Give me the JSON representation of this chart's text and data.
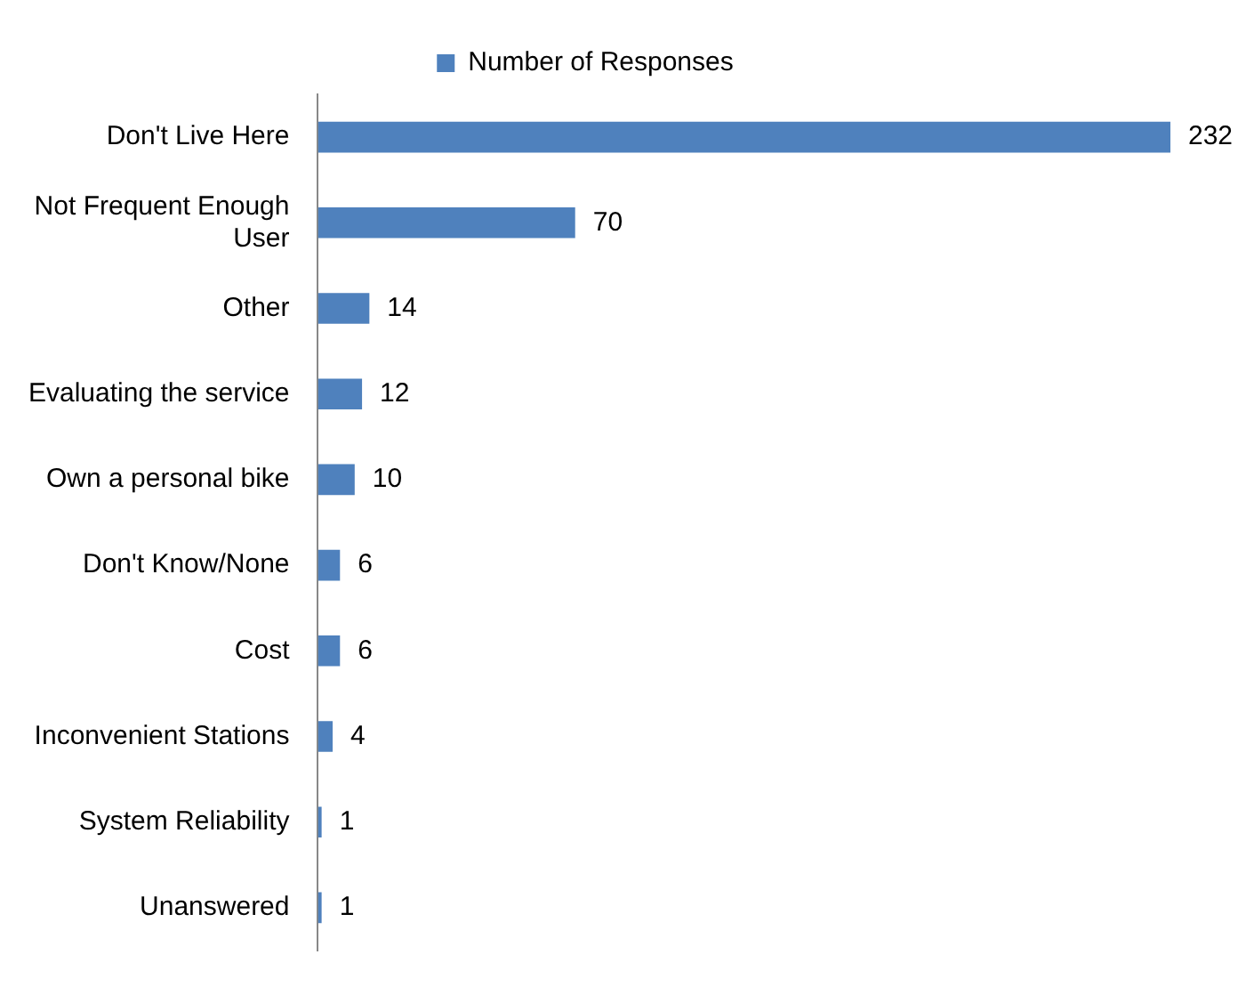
{
  "chart_data": {
    "type": "bar",
    "orientation": "horizontal",
    "categories": [
      "Don't Live Here",
      "Not Frequent Enough User",
      "Other",
      "Evaluating the service",
      "Own a personal bike",
      "Don't Know/None",
      "Cost",
      "Inconvenient Stations",
      "System Reliability",
      "Unanswered"
    ],
    "series": [
      {
        "name": "Number of Responses",
        "color": "#4f81bd",
        "values": [
          232,
          70,
          14,
          12,
          10,
          6,
          6,
          4,
          1,
          1
        ]
      }
    ],
    "data_labels": true,
    "legend": "top"
  }
}
